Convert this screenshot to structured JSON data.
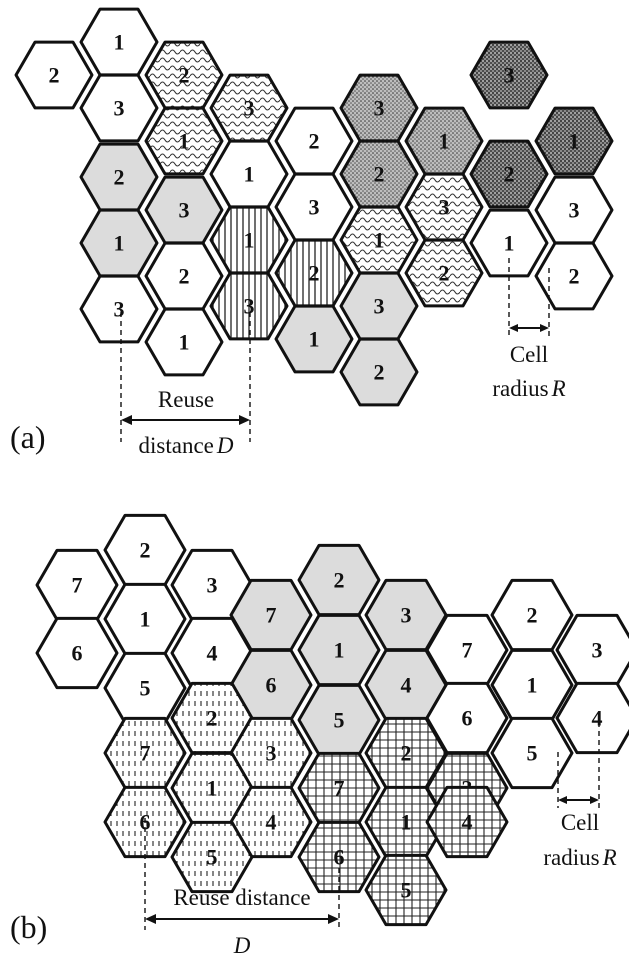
{
  "panel_a": {
    "label": "(a)",
    "cells": [
      {
        "n": "2",
        "fill": "white"
      },
      {
        "n": "1",
        "fill": "white"
      },
      {
        "n": "3",
        "fill": "white"
      },
      {
        "n": "2",
        "fill": "wave"
      },
      {
        "n": "1",
        "fill": "wave"
      },
      {
        "n": "3",
        "fill": "wave"
      },
      {
        "n": "2",
        "fill": "gray"
      },
      {
        "n": "3",
        "fill": "gray"
      },
      {
        "n": "1",
        "fill": "gray"
      },
      {
        "n": "2",
        "fill": "white"
      },
      {
        "n": "3",
        "fill": "white"
      },
      {
        "n": "1",
        "fill": "white"
      },
      {
        "n": "1",
        "fill": "white"
      },
      {
        "n": "2",
        "fill": "white"
      },
      {
        "n": "3",
        "fill": "white"
      },
      {
        "n": "1",
        "fill": "vert"
      },
      {
        "n": "3",
        "fill": "vert"
      },
      {
        "n": "2",
        "fill": "vert"
      },
      {
        "n": "3",
        "fill": "gray"
      },
      {
        "n": "1",
        "fill": "gray"
      },
      {
        "n": "2",
        "fill": "gray"
      },
      {
        "n": "3",
        "fill": "dots"
      },
      {
        "n": "2",
        "fill": "dots"
      },
      {
        "n": "1",
        "fill": "dots"
      },
      {
        "n": "1",
        "fill": "wave"
      },
      {
        "n": "3",
        "fill": "wave"
      },
      {
        "n": "2",
        "fill": "wave"
      },
      {
        "n": "3",
        "fill": "dense"
      },
      {
        "n": "2",
        "fill": "dense"
      },
      {
        "n": "1",
        "fill": "dense"
      },
      {
        "n": "1",
        "fill": "white"
      },
      {
        "n": "3",
        "fill": "white"
      },
      {
        "n": "2",
        "fill": "white"
      }
    ],
    "reuse_label_1": "Reuse",
    "reuse_label_2": "distance",
    "reuse_symbol": "D",
    "cell_label_1": "Cell",
    "cell_label_2": "radius",
    "cell_symbol": "R"
  },
  "panel_b": {
    "label": "(b)",
    "cells": [
      {
        "n": "2",
        "fill": "white"
      },
      {
        "n": "7",
        "fill": "white"
      },
      {
        "n": "3",
        "fill": "white"
      },
      {
        "n": "1",
        "fill": "white"
      },
      {
        "n": "6",
        "fill": "white"
      },
      {
        "n": "4",
        "fill": "white"
      },
      {
        "n": "5",
        "fill": "white"
      },
      {
        "n": "2",
        "fill": "gray"
      },
      {
        "n": "7",
        "fill": "gray"
      },
      {
        "n": "3",
        "fill": "gray"
      },
      {
        "n": "1",
        "fill": "gray"
      },
      {
        "n": "6",
        "fill": "gray"
      },
      {
        "n": "4",
        "fill": "gray"
      },
      {
        "n": "5",
        "fill": "gray"
      },
      {
        "n": "2",
        "fill": "dash"
      },
      {
        "n": "7",
        "fill": "dash"
      },
      {
        "n": "3",
        "fill": "dash"
      },
      {
        "n": "1",
        "fill": "dash"
      },
      {
        "n": "6",
        "fill": "dash"
      },
      {
        "n": "4",
        "fill": "dash"
      },
      {
        "n": "5",
        "fill": "dash"
      },
      {
        "n": "2",
        "fill": "grid"
      },
      {
        "n": "7",
        "fill": "grid"
      },
      {
        "n": "3",
        "fill": "grid"
      },
      {
        "n": "1",
        "fill": "grid"
      },
      {
        "n": "6",
        "fill": "grid"
      },
      {
        "n": "4",
        "fill": "grid"
      },
      {
        "n": "5",
        "fill": "grid"
      },
      {
        "n": "7",
        "fill": "white"
      },
      {
        "n": "2",
        "fill": "white"
      },
      {
        "n": "6",
        "fill": "white"
      },
      {
        "n": "1",
        "fill": "white"
      },
      {
        "n": "5",
        "fill": "white"
      },
      {
        "n": "3",
        "fill": "white"
      },
      {
        "n": "4",
        "fill": "white"
      }
    ],
    "reuse_label": "Reuse distance",
    "reuse_symbol": "D",
    "cell_label_1": "Cell",
    "cell_label_2": "radius",
    "cell_symbol": "R"
  },
  "colors": {
    "gray": "#dcdcdc",
    "stroke": "#111111",
    "background": "#ffffff"
  }
}
